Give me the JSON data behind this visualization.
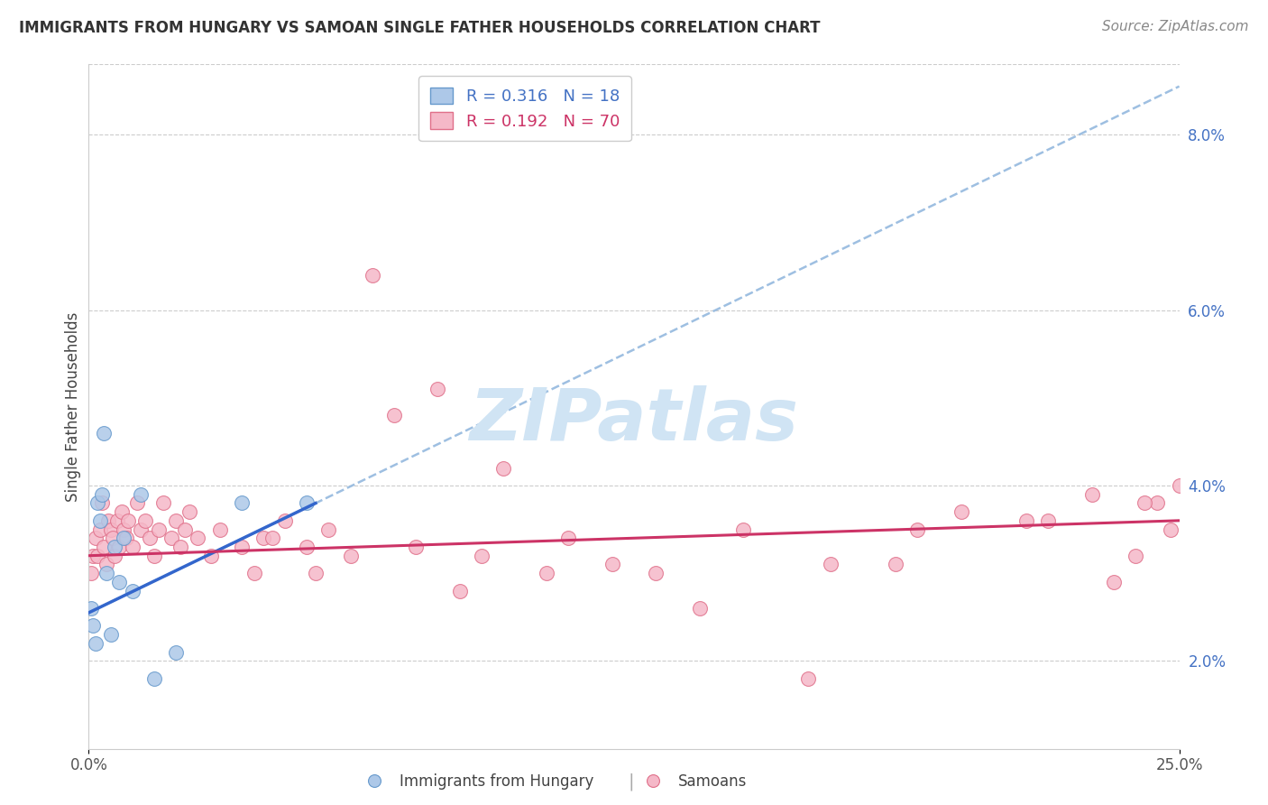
{
  "title": "IMMIGRANTS FROM HUNGARY VS SAMOAN SINGLE FATHER HOUSEHOLDS CORRELATION CHART",
  "source": "Source: ZipAtlas.com",
  "ylabel": "Single Father Households",
  "right_yticks": [
    2.0,
    4.0,
    6.0,
    8.0
  ],
  "xlim": [
    0.0,
    25.0
  ],
  "ylim": [
    1.0,
    8.8
  ],
  "hungary_color": "#adc8e8",
  "hungary_edge": "#6699cc",
  "samoan_color": "#f5b8c8",
  "samoan_edge": "#e0708a",
  "hungary_trend_color": "#3366cc",
  "samoan_trend_color": "#cc3366",
  "hungary_dashed_color": "#99bce0",
  "watermark_color": "#d0e4f4",
  "hungary_x": [
    0.05,
    0.1,
    0.15,
    0.2,
    0.25,
    0.3,
    0.35,
    0.4,
    0.5,
    0.6,
    0.7,
    0.8,
    1.0,
    1.2,
    1.5,
    2.0,
    3.5,
    5.0
  ],
  "hungary_y": [
    2.6,
    2.4,
    2.2,
    3.8,
    3.6,
    3.9,
    4.6,
    3.0,
    2.3,
    3.3,
    2.9,
    3.4,
    2.8,
    3.9,
    1.8,
    2.1,
    3.8,
    3.8
  ],
  "samoan_x": [
    0.05,
    0.1,
    0.15,
    0.2,
    0.25,
    0.3,
    0.35,
    0.4,
    0.45,
    0.5,
    0.55,
    0.6,
    0.65,
    0.7,
    0.75,
    0.8,
    0.85,
    0.9,
    1.0,
    1.1,
    1.2,
    1.3,
    1.4,
    1.5,
    1.6,
    1.7,
    1.9,
    2.0,
    2.1,
    2.2,
    2.3,
    2.5,
    2.8,
    3.0,
    3.5,
    4.0,
    4.5,
    5.0,
    5.5,
    6.5,
    7.0,
    8.0,
    9.5,
    12.0,
    14.0,
    15.0,
    16.5,
    20.0,
    21.5,
    23.0,
    24.0,
    24.5,
    25.0,
    8.5,
    9.0,
    10.5,
    11.0,
    13.0,
    17.0,
    19.0,
    22.0,
    23.5,
    24.2,
    24.8,
    18.5,
    6.0,
    3.8,
    4.2,
    5.2,
    7.5
  ],
  "samoan_y": [
    3.0,
    3.2,
    3.4,
    3.2,
    3.5,
    3.8,
    3.3,
    3.1,
    3.6,
    3.5,
    3.4,
    3.2,
    3.6,
    3.3,
    3.7,
    3.5,
    3.4,
    3.6,
    3.3,
    3.8,
    3.5,
    3.6,
    3.4,
    3.2,
    3.5,
    3.8,
    3.4,
    3.6,
    3.3,
    3.5,
    3.7,
    3.4,
    3.2,
    3.5,
    3.3,
    3.4,
    3.6,
    3.3,
    3.5,
    6.4,
    4.8,
    5.1,
    4.2,
    3.1,
    2.6,
    3.5,
    1.8,
    3.7,
    3.6,
    3.9,
    3.2,
    3.8,
    4.0,
    2.8,
    3.2,
    3.0,
    3.4,
    3.0,
    3.1,
    3.5,
    3.6,
    2.9,
    3.8,
    3.5,
    3.1,
    3.2,
    3.0,
    3.4,
    3.0,
    3.3
  ],
  "hungary_solid_xrange": [
    0.0,
    5.2
  ],
  "samoan_line_xrange": [
    0.0,
    25.0
  ],
  "hungary_dash_xrange": [
    0.0,
    25.0
  ],
  "hungary_solid_slope": 0.24,
  "hungary_solid_intercept": 2.55,
  "hungary_dash_slope": 0.24,
  "hungary_dash_intercept": 2.55,
  "samoan_slope": 0.016,
  "samoan_intercept": 3.2,
  "grid_color": "#cccccc",
  "spine_color": "#cccccc",
  "title_fontsize": 12,
  "source_fontsize": 11,
  "tick_fontsize": 12,
  "ylabel_fontsize": 12,
  "right_tick_color": "#4472c4",
  "legend_hungary_label": "R = 0.316   N = 18",
  "legend_samoan_label": "R = 0.192   N = 70",
  "bottom_label_hungary": "Immigrants from Hungary",
  "bottom_label_samoans": "Samoans"
}
